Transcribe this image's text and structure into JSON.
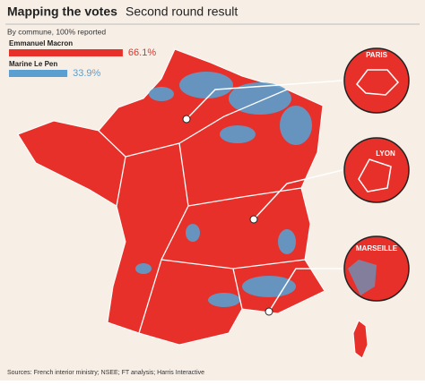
{
  "header": {
    "title": "Mapping the votes",
    "subtitle": "Second round result",
    "note": "By commune, 100% reported"
  },
  "legend": {
    "items": [
      {
        "name": "Emmanuel Macron",
        "value": 66.1,
        "value_label": "66.1%",
        "color": "#e8302a"
      },
      {
        "name": "Marine Le Pen",
        "value": 33.9,
        "value_label": "33.9%",
        "color": "#5a9fcf"
      }
    ]
  },
  "insets": [
    {
      "label": "PARIS"
    },
    {
      "label": "LYON"
    },
    {
      "label": "MARSEILLE"
    }
  ],
  "source": "Sources: French interior ministry; NSEE; FT analysis; Harris Interactive"
}
